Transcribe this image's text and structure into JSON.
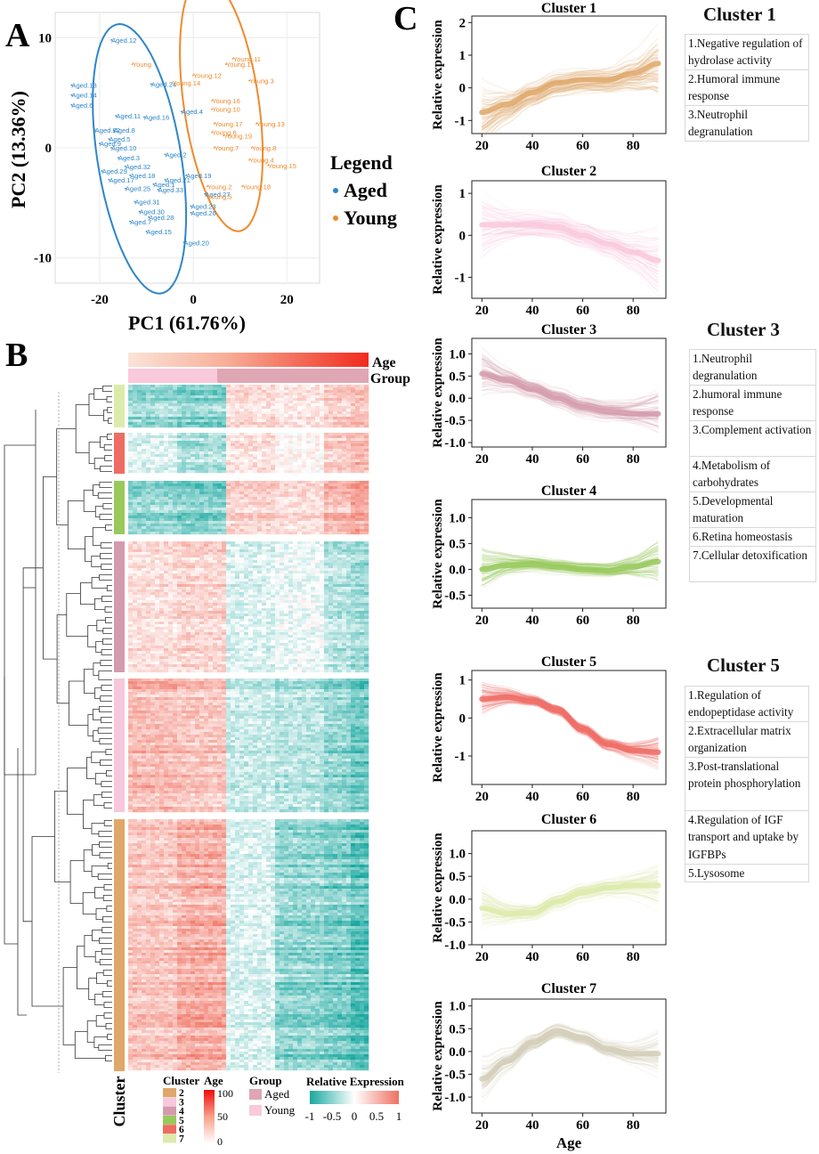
{
  "panels": {
    "a_label": "A",
    "b_label": "B",
    "c_label": "C"
  },
  "colors": {
    "aged": "#2e86c8",
    "young": "#ef8a2c",
    "cluster2": "#dfa768",
    "cluster3": "#f9c7db",
    "cluster4": "#d59aad",
    "cluster5": "#98c95a",
    "cluster6": "#ef6c64",
    "cluster7": "#dcebaa",
    "heat_low": "#1aa8a0",
    "heat_mid": "#ffffff",
    "heat_high": "#f07060"
  },
  "pca": {
    "xlabel": "PC1 (61.76%)",
    "ylabel": "PC2 (13.36%)",
    "x_ticks": [
      -20,
      0,
      20
    ],
    "y_ticks": [
      -10,
      0,
      10
    ],
    "xlim": [
      -29.5,
      27
    ],
    "ylim": [
      -12.3,
      12.3
    ],
    "legend_title": "Legend",
    "legend_items": [
      {
        "name": "Aged"
      },
      {
        "name": "Young"
      }
    ],
    "points": [
      {
        "label": "Aged.12",
        "x": -17.5,
        "y": 9.8,
        "group": "Aged"
      },
      {
        "label": "Aged.13",
        "x": -26.0,
        "y": 5.7,
        "group": "Aged"
      },
      {
        "label": "Aged.14",
        "x": -26.0,
        "y": 4.8,
        "group": "Aged"
      },
      {
        "label": "Aged.6",
        "x": -26.0,
        "y": 3.9,
        "group": "Aged"
      },
      {
        "label": "Aged.24",
        "x": -9.0,
        "y": 5.8,
        "group": "Aged"
      },
      {
        "label": "Aged.11",
        "x": -16.5,
        "y": 2.9,
        "group": "Aged"
      },
      {
        "label": "Aged.16",
        "x": -10.5,
        "y": 2.8,
        "group": "Aged"
      },
      {
        "label": "Aged.4",
        "x": -2.5,
        "y": 3.3,
        "group": "Aged"
      },
      {
        "label": "Aged.22",
        "x": -21.0,
        "y": 1.6,
        "group": "Aged"
      },
      {
        "label": "Aged.8",
        "x": -17.0,
        "y": 1.6,
        "group": "Aged"
      },
      {
        "label": "Aged.5",
        "x": -18.0,
        "y": 0.8,
        "group": "Aged"
      },
      {
        "label": "Aged.10",
        "x": -17.5,
        "y": 0.0,
        "group": "Aged"
      },
      {
        "label": "Aged.9",
        "x": -20.0,
        "y": 0.4,
        "group": "Aged"
      },
      {
        "label": "Aged.2",
        "x": -6.0,
        "y": -0.6,
        "group": "Aged"
      },
      {
        "label": "Aged.3",
        "x": -16.0,
        "y": -0.9,
        "group": "Aged"
      },
      {
        "label": "Aged.32",
        "x": -14.5,
        "y": -1.7,
        "group": "Aged"
      },
      {
        "label": "Aged.29",
        "x": -19.5,
        "y": -2.1,
        "group": "Aged"
      },
      {
        "label": "Aged.18",
        "x": -13.5,
        "y": -2.5,
        "group": "Aged"
      },
      {
        "label": "Aged.17",
        "x": -18.0,
        "y": -2.9,
        "group": "Aged"
      },
      {
        "label": "Aged.21",
        "x": -6.0,
        "y": -2.9,
        "group": "Aged"
      },
      {
        "label": "Aged.19",
        "x": -1.5,
        "y": -2.5,
        "group": "Aged"
      },
      {
        "label": "Aged.25",
        "x": -14.5,
        "y": -3.7,
        "group": "Aged"
      },
      {
        "label": "Aged.1",
        "x": -8.5,
        "y": -3.3,
        "group": "Aged"
      },
      {
        "label": "Aged.33",
        "x": -7.5,
        "y": -3.8,
        "group": "Aged"
      },
      {
        "label": "Aged.31",
        "x": -12.5,
        "y": -4.9,
        "group": "Aged"
      },
      {
        "label": "Aged.30",
        "x": -11.5,
        "y": -5.8,
        "group": "Aged"
      },
      {
        "label": "Aged.28",
        "x": -9.5,
        "y": -6.3,
        "group": "Aged"
      },
      {
        "label": "Aged.23",
        "x": -0.5,
        "y": -5.3,
        "group": "Aged"
      },
      {
        "label": "Aged.26",
        "x": -0.5,
        "y": -5.9,
        "group": "Aged"
      },
      {
        "label": "Aged.7",
        "x": -13.5,
        "y": -6.7,
        "group": "Aged"
      },
      {
        "label": "Aged.15",
        "x": -10.0,
        "y": -7.6,
        "group": "Aged"
      },
      {
        "label": "Aged.20",
        "x": -2.0,
        "y": -8.6,
        "group": "Aged"
      },
      {
        "label": "Aged.27",
        "x": 2.5,
        "y": -4.2,
        "group": "Aged"
      },
      {
        "label": "Young.11",
        "x": 8.5,
        "y": 8.1,
        "group": "Young"
      },
      {
        "label": "Young.1",
        "x": 7.0,
        "y": 7.6,
        "group": "Young"
      },
      {
        "label": "Young",
        "x": -13.0,
        "y": 7.6,
        "group": "Young"
      },
      {
        "label": "Young.12",
        "x": 0.0,
        "y": 6.6,
        "group": "Young"
      },
      {
        "label": "Young.14",
        "x": -4.5,
        "y": 5.9,
        "group": "Young"
      },
      {
        "label": "Young.3",
        "x": 12.0,
        "y": 6.1,
        "group": "Young"
      },
      {
        "label": "Young.16",
        "x": 4.0,
        "y": 4.3,
        "group": "Young"
      },
      {
        "label": "Young.10",
        "x": 4.0,
        "y": 3.5,
        "group": "Young"
      },
      {
        "label": "Young.17",
        "x": 4.5,
        "y": 2.2,
        "group": "Young"
      },
      {
        "label": "Young.13",
        "x": 13.5,
        "y": 2.2,
        "group": "Young"
      },
      {
        "label": "Young.6",
        "x": 4.0,
        "y": 1.4,
        "group": "Young"
      },
      {
        "label": "Young.19",
        "x": 6.5,
        "y": 1.1,
        "group": "Young"
      },
      {
        "label": "Young.7",
        "x": 4.5,
        "y": 0.0,
        "group": "Young"
      },
      {
        "label": "Young.8",
        "x": 12.5,
        "y": 0.0,
        "group": "Young"
      },
      {
        "label": "Young.4",
        "x": 12.0,
        "y": -1.1,
        "group": "Young"
      },
      {
        "label": "Young.15",
        "x": 16.0,
        "y": -1.6,
        "group": "Young"
      },
      {
        "label": "Young.18",
        "x": 10.5,
        "y": -3.5,
        "group": "Young"
      },
      {
        "label": "Young.2",
        "x": 3.0,
        "y": -3.5,
        "group": "Young"
      },
      {
        "label": "Young.5",
        "x": 3.0,
        "y": -4.4,
        "group": "Young"
      }
    ]
  },
  "heatmap": {
    "age_label": "Age",
    "group_label": "Group",
    "cluster_axis_label": "Cluster",
    "legend": {
      "cluster_title": "Cluster",
      "cluster_items": [
        "2",
        "3",
        "4",
        "5",
        "6",
        "7"
      ],
      "age_title": "Age",
      "age_ticks": [
        "100",
        "50",
        "0"
      ],
      "group_title": "Group",
      "group_items": [
        "Aged",
        "Young"
      ],
      "relexp_title": "Relative Expression",
      "relexp_ticks": [
        "-1",
        "-0.5",
        "0",
        "0.5",
        "1"
      ]
    },
    "blocks": [
      {
        "cluster": "7",
        "pattern": [
          -0.5,
          -0.6,
          0.3,
          0.2,
          0.4
        ]
      },
      {
        "cluster": "6",
        "pattern": [
          -0.2,
          -0.5,
          0.3,
          0.1,
          0.5
        ]
      },
      {
        "cluster": "5",
        "pattern": [
          -0.6,
          -0.7,
          0.4,
          0.3,
          0.6
        ]
      },
      {
        "cluster": "4",
        "pattern": [
          0.3,
          0.4,
          -0.2,
          -0.1,
          -0.4
        ]
      },
      {
        "cluster": "3",
        "pattern": [
          0.6,
          0.5,
          -0.3,
          -0.4,
          -0.6
        ]
      },
      {
        "cluster": "2",
        "pattern": [
          0.5,
          0.7,
          -0.2,
          -0.6,
          -0.7
        ]
      }
    ]
  },
  "trend_charts": [
    {
      "title": "Cluster 1",
      "ylabel": "Relative expression",
      "xlabel": "",
      "x_ticks": [
        20,
        40,
        60,
        80
      ],
      "y_ticks": [
        -1,
        0,
        1,
        2
      ],
      "ylim": [
        -1.4,
        2.2
      ],
      "color": "#dfa768",
      "x": [
        20,
        30,
        40,
        50,
        60,
        70,
        80,
        90
      ],
      "y": [
        -0.75,
        -0.5,
        -0.15,
        0.15,
        0.25,
        0.25,
        0.45,
        0.75
      ],
      "spread": 0.9
    },
    {
      "title": "Cluster 2",
      "ylabel": "Relative expression",
      "xlabel": "",
      "x_ticks": [
        20,
        40,
        60,
        80
      ],
      "y_ticks": [
        -1,
        0,
        1
      ],
      "ylim": [
        -1.5,
        1.3
      ],
      "color": "#f9c7db",
      "x": [
        20,
        30,
        40,
        50,
        60,
        70,
        80,
        90
      ],
      "y": [
        0.25,
        0.25,
        0.25,
        0.2,
        0.0,
        -0.2,
        -0.4,
        -0.6
      ],
      "spread": 0.7
    },
    {
      "title": "Cluster 3",
      "ylabel": "Relative expression",
      "xlabel": "",
      "x_ticks": [
        20,
        40,
        60,
        80
      ],
      "y_ticks": [
        -1.0,
        -0.5,
        0.0,
        0.5,
        1.0
      ],
      "ylim": [
        -1.1,
        1.35
      ],
      "color": "#d59aad",
      "x": [
        20,
        30,
        40,
        50,
        60,
        70,
        80,
        90
      ],
      "y": [
        0.55,
        0.4,
        0.2,
        0.0,
        -0.2,
        -0.3,
        -0.35,
        -0.35
      ],
      "spread": 0.5
    },
    {
      "title": "Cluster 4",
      "ylabel": "Relative expression",
      "xlabel": "",
      "x_ticks": [
        20,
        40,
        60,
        80
      ],
      "y_ticks": [
        -0.5,
        0.0,
        0.5,
        1.0
      ],
      "ylim": [
        -0.75,
        1.35
      ],
      "color": "#98c95a",
      "x": [
        20,
        30,
        40,
        50,
        60,
        70,
        80,
        90
      ],
      "y": [
        0.0,
        0.08,
        0.1,
        0.05,
        0.0,
        -0.02,
        0.05,
        0.15
      ],
      "spread": 0.35
    },
    {
      "title": "Cluster 5",
      "ylabel": "Relative expression",
      "xlabel": "",
      "x_ticks": [
        20,
        40,
        60,
        80
      ],
      "y_ticks": [
        -1,
        0,
        1
      ],
      "ylim": [
        -1.75,
        1.25
      ],
      "color": "#ef6c64",
      "x": [
        20,
        30,
        40,
        50,
        60,
        70,
        80,
        90
      ],
      "y": [
        0.5,
        0.55,
        0.45,
        0.2,
        -0.3,
        -0.7,
        -0.85,
        -0.9
      ],
      "spread": 0.35
    },
    {
      "title": "Cluster 6",
      "ylabel": "Relative expression",
      "xlabel": "",
      "x_ticks": [
        20,
        40,
        60,
        80
      ],
      "y_ticks": [
        -1.0,
        -0.5,
        0.0,
        0.5,
        1.0
      ],
      "ylim": [
        -1.0,
        1.5
      ],
      "color": "#dcebaa",
      "x": [
        20,
        30,
        40,
        50,
        60,
        70,
        80,
        90
      ],
      "y": [
        -0.2,
        -0.32,
        -0.3,
        -0.05,
        0.15,
        0.25,
        0.3,
        0.3
      ],
      "spread": 0.45
    },
    {
      "title": "Cluster 7",
      "ylabel": "Relative expression",
      "xlabel": "Age",
      "x_ticks": [
        20,
        40,
        60,
        80
      ],
      "y_ticks": [
        -1.0,
        -0.5,
        0.0,
        0.5,
        1.0
      ],
      "ylim": [
        -1.35,
        1.15
      ],
      "color": "#d3ceb8",
      "x": [
        20,
        30,
        40,
        50,
        60,
        70,
        80,
        90
      ],
      "y": [
        -0.6,
        -0.2,
        0.2,
        0.45,
        0.3,
        0.05,
        -0.05,
        -0.05
      ],
      "spread": 0.45
    }
  ],
  "term_tables": [
    {
      "title": "Cluster 1",
      "terms": [
        "1.Negative regulation of hydrolase activity",
        "2.Humoral immune response",
        "3.Neutrophil degranulation"
      ]
    },
    {
      "title": "Cluster 3",
      "terms": [
        "1.Neutrophil degranulation",
        "2.humoral immune response",
        "3.Complement activation",
        "4.Metabolism of carbohydrates",
        "5.Developmental maturation",
        "6.Retina homeostasis",
        "7.Cellular detoxification"
      ]
    },
    {
      "title": "Cluster 5",
      "terms": [
        "1.Regulation of endopeptidase activity",
        "2.Extracellular matrix organization",
        "3.Post-translational protein phosphorylation",
        "4.Regulation of IGF transport and uptake by IGFBPs",
        "5.Lysosome"
      ]
    }
  ]
}
